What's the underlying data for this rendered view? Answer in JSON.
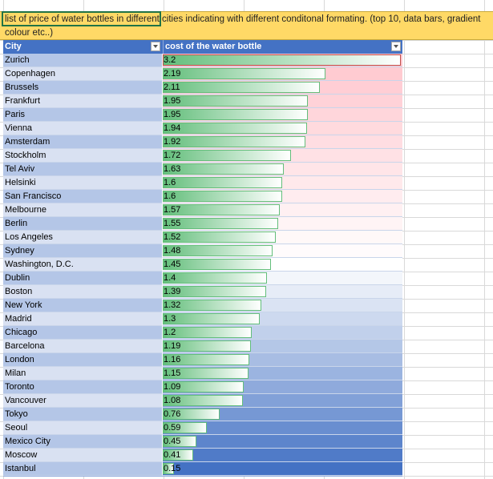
{
  "banner": {
    "text": "list of price of water bottles in different cities indicating with different conditonal formating. (top 10, data bars, gradient colour etc..)"
  },
  "table": {
    "headers": {
      "city": "City",
      "cost": "cost of the water bottle"
    },
    "max_value": 3.2,
    "rows": [
      {
        "city": "Zurich",
        "cost": "3.2"
      },
      {
        "city": "Copenhagen",
        "cost": "2.19"
      },
      {
        "city": "Brussels",
        "cost": "2.11"
      },
      {
        "city": "Frankfurt",
        "cost": "1.95"
      },
      {
        "city": "Paris",
        "cost": "1.95"
      },
      {
        "city": "Vienna",
        "cost": "1.94"
      },
      {
        "city": "Amsterdam",
        "cost": "1.92"
      },
      {
        "city": "Stockholm",
        "cost": "1.72"
      },
      {
        "city": "Tel Aviv",
        "cost": "1.63"
      },
      {
        "city": "Helsinki",
        "cost": "1.6"
      },
      {
        "city": "San Francisco",
        "cost": "1.6"
      },
      {
        "city": "Melbourne",
        "cost": "1.57"
      },
      {
        "city": "Berlin",
        "cost": "1.55"
      },
      {
        "city": "Los Angeles",
        "cost": "1.52"
      },
      {
        "city": "Sydney",
        "cost": "1.48"
      },
      {
        "city": "Washington, D.C.",
        "cost": "1.45"
      },
      {
        "city": "Dublin",
        "cost": "1.4"
      },
      {
        "city": "Boston",
        "cost": "1.39"
      },
      {
        "city": "New York",
        "cost": "1.32"
      },
      {
        "city": "Madrid",
        "cost": "1.3"
      },
      {
        "city": "Chicago",
        "cost": "1.2"
      },
      {
        "city": "Barcelona",
        "cost": "1.19"
      },
      {
        "city": "London",
        "cost": "1.16"
      },
      {
        "city": "Milan",
        "cost": "1.15"
      },
      {
        "city": "Toronto",
        "cost": "1.09"
      },
      {
        "city": "Vancouver",
        "cost": "1.08"
      },
      {
        "city": "Tokyo",
        "cost": "0.76"
      },
      {
        "city": "Seoul",
        "cost": "0.59"
      },
      {
        "city": "Mexico City",
        "cost": "0.45"
      },
      {
        "city": "Moscow",
        "cost": "0.41"
      },
      {
        "city": "Istanbul",
        "cost": "0.15"
      }
    ]
  },
  "colors": {
    "header_bg": "#4472c4",
    "banner_bg": "#ffd966",
    "bar_green": "#63be7b",
    "top_red": "#ffc7ce",
    "scale_low_blue": "#4472c4"
  }
}
